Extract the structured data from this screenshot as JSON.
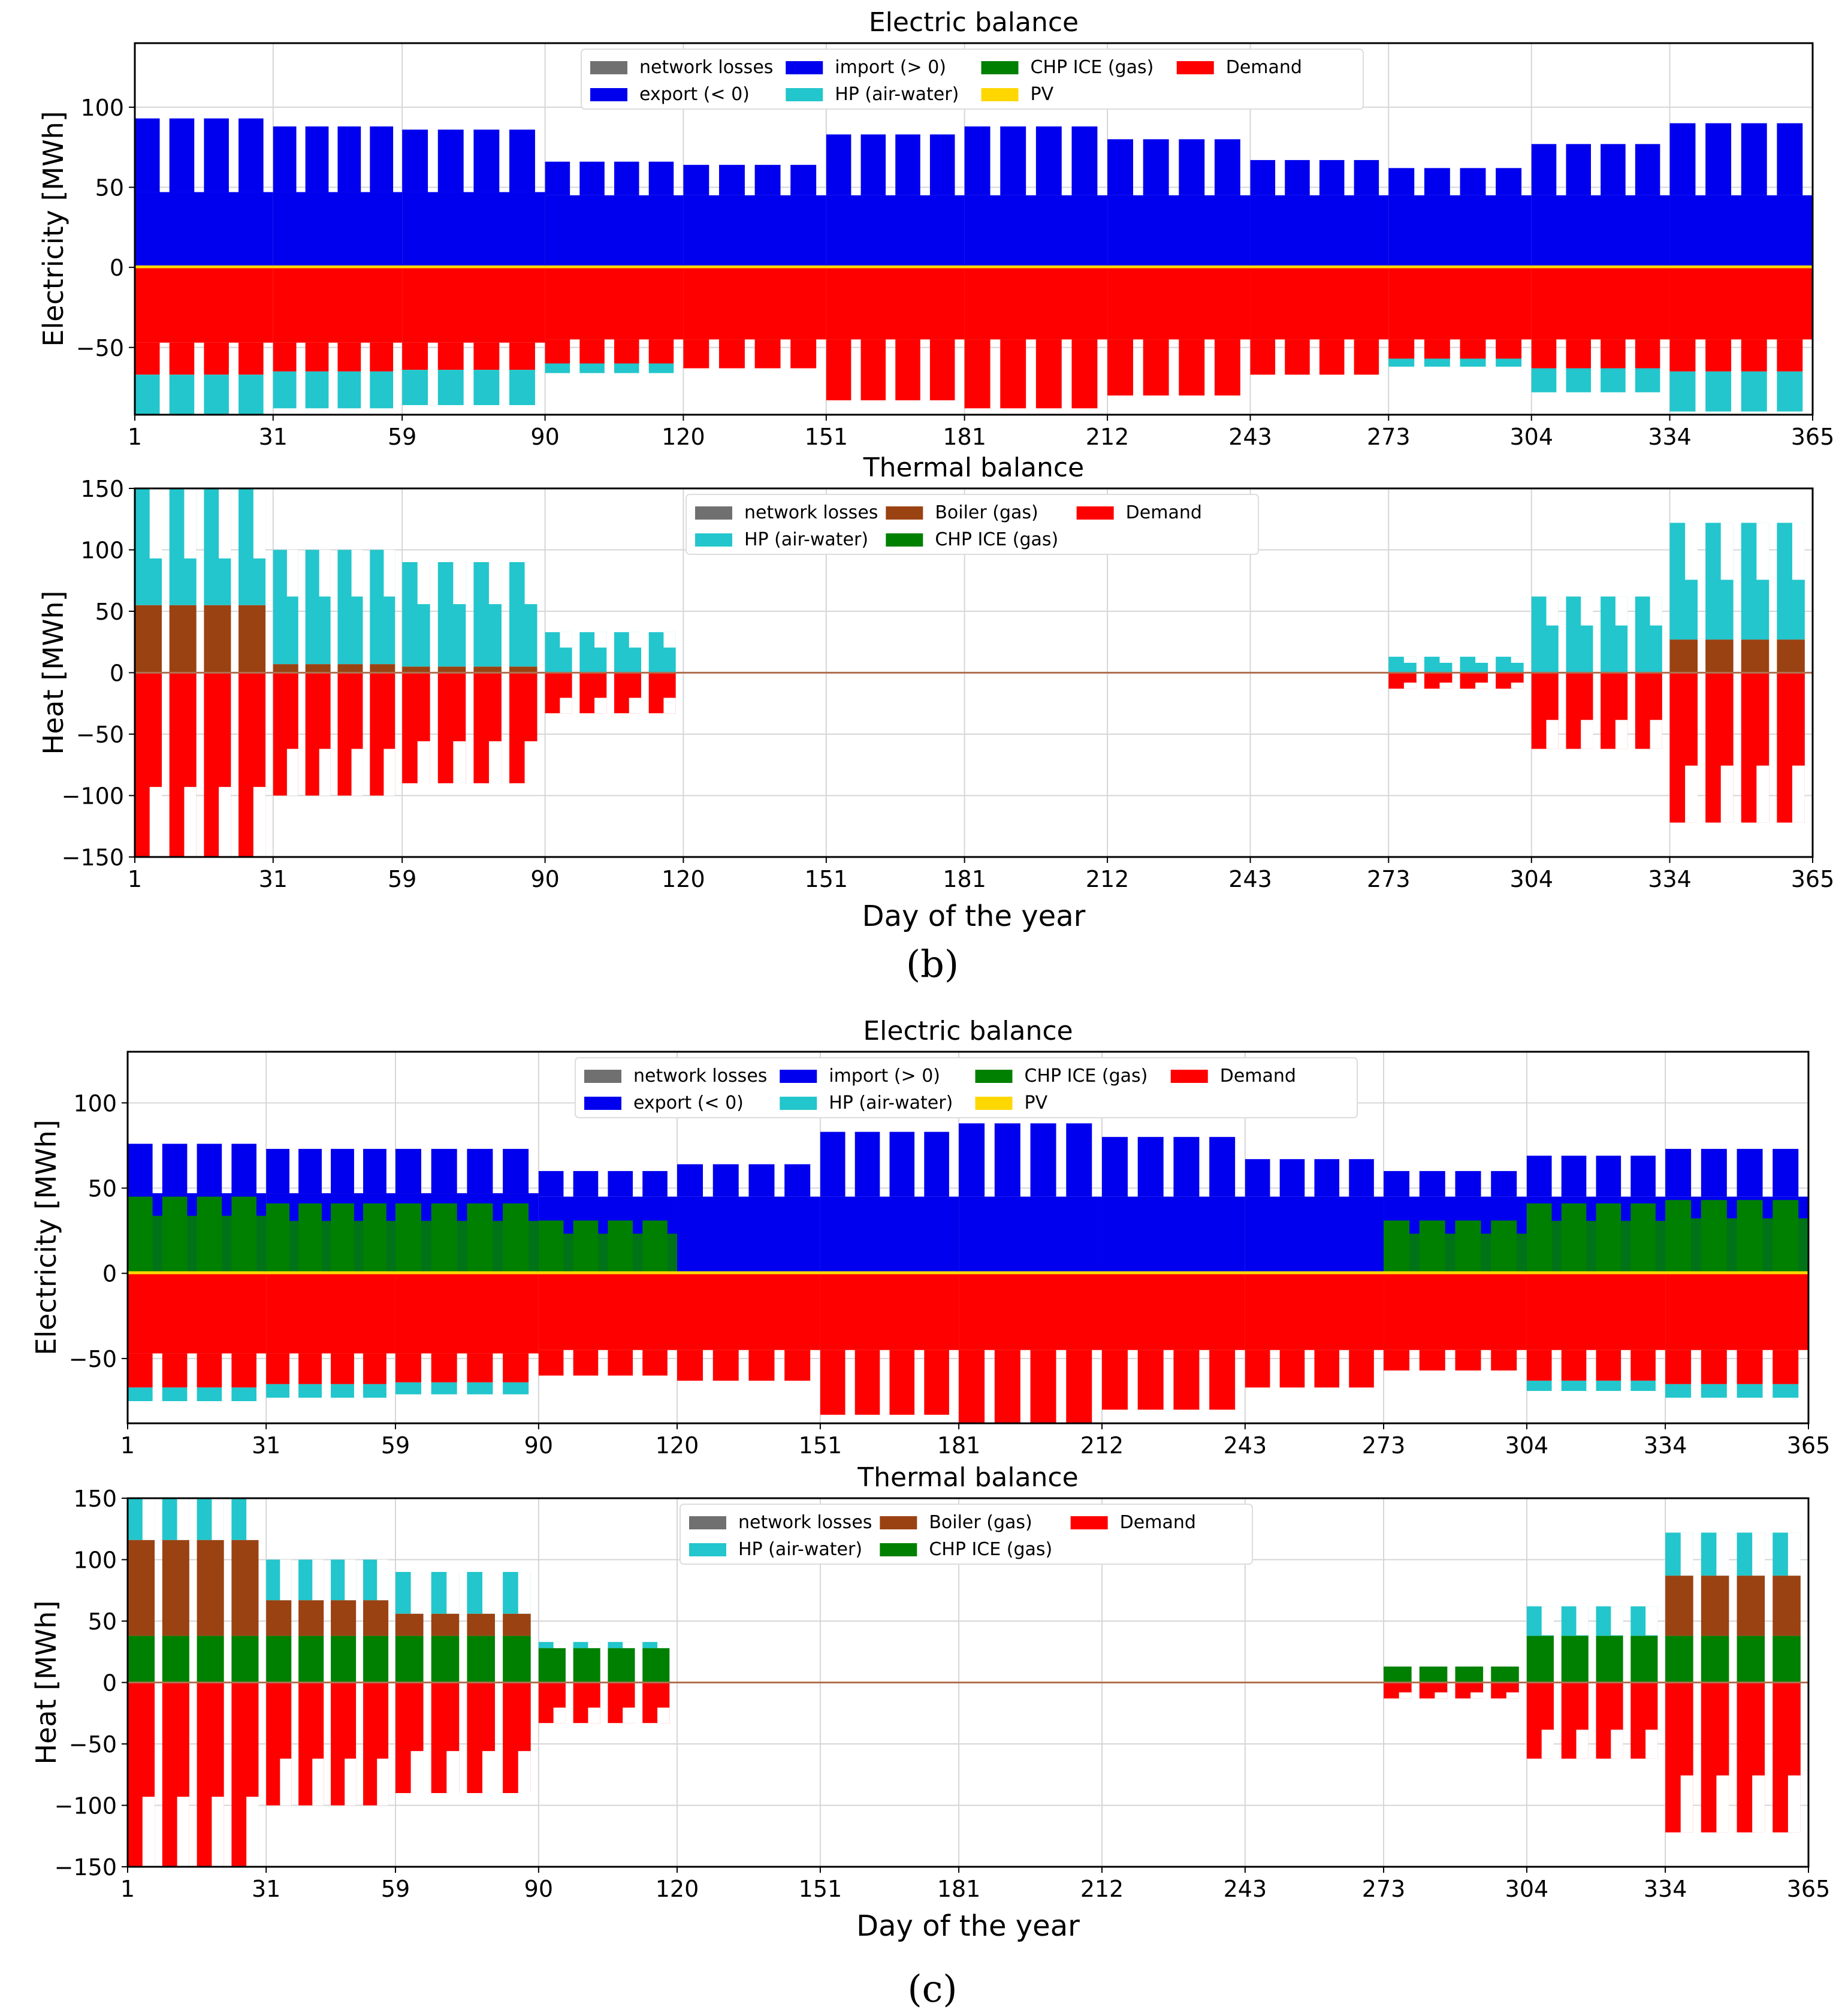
{
  "panels": [
    {
      "label": "(b)",
      "charts": [
        {
          "title": "Electric balance",
          "ylabel": "Electricity [MWh]",
          "xlabel": "",
          "ylim": [
            -92,
            140
          ],
          "yticks": [
            -50,
            0,
            50,
            100
          ],
          "xticks": [
            1,
            31,
            59,
            90,
            120,
            151,
            181,
            212,
            243,
            273,
            304,
            334,
            365
          ],
          "xlim": [
            1,
            365
          ],
          "legend": [
            {
              "name": "network losses",
              "color": "#707070"
            },
            {
              "name": "export (< 0)",
              "color": "#0000ee"
            },
            {
              "name": "import (> 0)",
              "color": "#0000ee"
            },
            {
              "name": "HP (air-water)",
              "color": "#22c6cc"
            },
            {
              "name": "CHP ICE (gas)",
              "color": "#008000"
            },
            {
              "name": "PV",
              "color": "#ffd700"
            },
            {
              "name": "Demand",
              "color": "#ff0000"
            }
          ],
          "chart_data": {
            "type": "bar",
            "months": [
              {
                "start": 1,
                "end": 31,
                "base_pos": 47,
                "peak_pos": 93,
                "chp": 0,
                "base_neg": -47,
                "peak_neg": -67,
                "hp": 25
              },
              {
                "start": 31,
                "end": 59,
                "base_pos": 47,
                "peak_pos": 88,
                "chp": 0,
                "base_neg": -47,
                "peak_neg": -65,
                "hp": 23
              },
              {
                "start": 59,
                "end": 90,
                "base_pos": 47,
                "peak_pos": 86,
                "chp": 0,
                "base_neg": -47,
                "peak_neg": -64,
                "hp": 22
              },
              {
                "start": 90,
                "end": 120,
                "base_pos": 45,
                "peak_pos": 66,
                "chp": 0,
                "base_neg": -45,
                "peak_neg": -60,
                "hp": 6
              },
              {
                "start": 120,
                "end": 151,
                "base_pos": 45,
                "peak_pos": 64,
                "chp": 0,
                "base_neg": -45,
                "peak_neg": -63,
                "hp": 0
              },
              {
                "start": 151,
                "end": 181,
                "base_pos": 45,
                "peak_pos": 83,
                "chp": 0,
                "base_neg": -45,
                "peak_neg": -83,
                "hp": 0
              },
              {
                "start": 181,
                "end": 212,
                "base_pos": 45,
                "peak_pos": 88,
                "chp": 0,
                "base_neg": -45,
                "peak_neg": -88,
                "hp": 0
              },
              {
                "start": 212,
                "end": 243,
                "base_pos": 45,
                "peak_pos": 80,
                "chp": 0,
                "base_neg": -45,
                "peak_neg": -80,
                "hp": 0
              },
              {
                "start": 243,
                "end": 273,
                "base_pos": 45,
                "peak_pos": 67,
                "chp": 0,
                "base_neg": -45,
                "peak_neg": -67,
                "hp": 0
              },
              {
                "start": 273,
                "end": 304,
                "base_pos": 45,
                "peak_pos": 62,
                "chp": 0,
                "base_neg": -45,
                "peak_neg": -57,
                "hp": 5
              },
              {
                "start": 304,
                "end": 334,
                "base_pos": 45,
                "peak_pos": 77,
                "chp": 0,
                "base_neg": -45,
                "peak_neg": -63,
                "hp": 15
              },
              {
                "start": 334,
                "end": 365,
                "base_pos": 45,
                "peak_pos": 90,
                "chp": 0,
                "base_neg": -45,
                "peak_neg": -65,
                "hp": 25
              }
            ]
          }
        },
        {
          "title": "Thermal balance",
          "ylabel": "Heat [MWh]",
          "xlabel": "Day of the year",
          "ylim": [
            -150,
            150
          ],
          "yticks": [
            -150,
            -100,
            -50,
            0,
            50,
            100,
            150
          ],
          "xticks": [
            1,
            31,
            59,
            90,
            120,
            151,
            181,
            212,
            243,
            273,
            304,
            334,
            365
          ],
          "xlim": [
            1,
            365
          ],
          "legend": [
            {
              "name": "network losses",
              "color": "#707070"
            },
            {
              "name": "HP (air-water)",
              "color": "#22c6cc"
            },
            {
              "name": "Boiler (gas)",
              "color": "#9b4212"
            },
            {
              "name": "CHP ICE (gas)",
              "color": "#008000"
            },
            {
              "name": "Demand",
              "color": "#ff0000"
            }
          ],
          "chart_data": {
            "type": "bar",
            "months": [
              {
                "start": 1,
                "end": 31,
                "chp": 0,
                "boiler": 55,
                "hp_top": 150,
                "demand": -150,
                "trough": 0.62
              },
              {
                "start": 31,
                "end": 59,
                "chp": 0,
                "boiler": 7,
                "hp_top": 100,
                "demand": -100,
                "trough": 0.62
              },
              {
                "start": 59,
                "end": 90,
                "chp": 0,
                "boiler": 5,
                "hp_top": 90,
                "demand": -90,
                "trough": 0.62
              },
              {
                "start": 90,
                "end": 120,
                "chp": 0,
                "boiler": 0,
                "hp_top": 33,
                "demand": -33,
                "trough": 0.62
              },
              {
                "start": 273,
                "end": 304,
                "chp": 0,
                "boiler": 0,
                "hp_top": 13,
                "demand": -13,
                "trough": 0.62
              },
              {
                "start": 304,
                "end": 334,
                "chp": 0,
                "boiler": 0,
                "hp_top": 62,
                "demand": -62,
                "trough": 0.62
              },
              {
                "start": 334,
                "end": 365,
                "chp": 0,
                "boiler": 27,
                "hp_top": 122,
                "demand": -122,
                "trough": 0.62
              }
            ]
          }
        }
      ]
    },
    {
      "label": "(c)",
      "charts": [
        {
          "title": "Electric balance",
          "ylabel": "Electricity [MWh]",
          "xlabel": "",
          "ylim": [
            -88,
            130
          ],
          "yticks": [
            -50,
            0,
            50,
            100
          ],
          "xticks": [
            1,
            31,
            59,
            90,
            120,
            151,
            181,
            212,
            243,
            273,
            304,
            334,
            365
          ],
          "xlim": [
            1,
            365
          ],
          "legend": [
            {
              "name": "network losses",
              "color": "#707070"
            },
            {
              "name": "export (< 0)",
              "color": "#0000ee"
            },
            {
              "name": "import (> 0)",
              "color": "#0000ee"
            },
            {
              "name": "HP (air-water)",
              "color": "#22c6cc"
            },
            {
              "name": "CHP ICE (gas)",
              "color": "#008000"
            },
            {
              "name": "PV",
              "color": "#ffd700"
            },
            {
              "name": "Demand",
              "color": "#ff0000"
            }
          ],
          "chart_data": {
            "type": "bar",
            "months": [
              {
                "start": 1,
                "end": 31,
                "base_pos": 47,
                "peak_pos": 76,
                "chp": 45,
                "base_neg": -47,
                "peak_neg": -67,
                "hp": 8
              },
              {
                "start": 31,
                "end": 59,
                "base_pos": 47,
                "peak_pos": 73,
                "chp": 41,
                "base_neg": -47,
                "peak_neg": -65,
                "hp": 8
              },
              {
                "start": 59,
                "end": 90,
                "base_pos": 47,
                "peak_pos": 73,
                "chp": 41,
                "base_neg": -47,
                "peak_neg": -64,
                "hp": 7
              },
              {
                "start": 90,
                "end": 120,
                "base_pos": 45,
                "peak_pos": 60,
                "chp": 31,
                "base_neg": -45,
                "peak_neg": -60,
                "hp": 0
              },
              {
                "start": 120,
                "end": 151,
                "base_pos": 45,
                "peak_pos": 64,
                "chp": 0,
                "base_neg": -45,
                "peak_neg": -63,
                "hp": 0
              },
              {
                "start": 151,
                "end": 181,
                "base_pos": 45,
                "peak_pos": 83,
                "chp": 0,
                "base_neg": -45,
                "peak_neg": -83,
                "hp": 0
              },
              {
                "start": 181,
                "end": 212,
                "base_pos": 45,
                "peak_pos": 88,
                "chp": 0,
                "base_neg": -45,
                "peak_neg": -88,
                "hp": 0
              },
              {
                "start": 212,
                "end": 243,
                "base_pos": 45,
                "peak_pos": 80,
                "chp": 0,
                "base_neg": -45,
                "peak_neg": -80,
                "hp": 0
              },
              {
                "start": 243,
                "end": 273,
                "base_pos": 45,
                "peak_pos": 67,
                "chp": 0,
                "base_neg": -45,
                "peak_neg": -67,
                "hp": 0
              },
              {
                "start": 273,
                "end": 304,
                "base_pos": 45,
                "peak_pos": 60,
                "chp": 31,
                "base_neg": -45,
                "peak_neg": -57,
                "hp": 0
              },
              {
                "start": 304,
                "end": 334,
                "base_pos": 45,
                "peak_pos": 69,
                "chp": 41,
                "base_neg": -45,
                "peak_neg": -63,
                "hp": 6
              },
              {
                "start": 334,
                "end": 365,
                "base_pos": 45,
                "peak_pos": 73,
                "chp": 43,
                "base_neg": -45,
                "peak_neg": -65,
                "hp": 8
              }
            ]
          }
        },
        {
          "title": "Thermal balance",
          "ylabel": "Heat [MWh]",
          "xlabel": "Day of the year",
          "ylim": [
            -150,
            150
          ],
          "yticks": [
            -150,
            -100,
            -50,
            0,
            50,
            100,
            150
          ],
          "xticks": [
            1,
            31,
            59,
            90,
            120,
            151,
            181,
            212,
            243,
            273,
            304,
            334,
            365
          ],
          "xlim": [
            1,
            365
          ],
          "legend": [
            {
              "name": "network losses",
              "color": "#707070"
            },
            {
              "name": "HP (air-water)",
              "color": "#22c6cc"
            },
            {
              "name": "Boiler (gas)",
              "color": "#9b4212"
            },
            {
              "name": "CHP ICE (gas)",
              "color": "#008000"
            },
            {
              "name": "Demand",
              "color": "#ff0000"
            }
          ],
          "chart_data": {
            "type": "bar",
            "months": [
              {
                "start": 1,
                "end": 31,
                "chp": 38,
                "boiler": 116,
                "hp_top": 150,
                "demand": -150,
                "trough": 0.62
              },
              {
                "start": 31,
                "end": 59,
                "chp": 38,
                "boiler": 67,
                "hp_top": 100,
                "demand": -100,
                "trough": 0.62
              },
              {
                "start": 59,
                "end": 90,
                "chp": 38,
                "boiler": 56,
                "hp_top": 90,
                "demand": -90,
                "trough": 0.62
              },
              {
                "start": 90,
                "end": 120,
                "chp": 28,
                "boiler": 28,
                "hp_top": 33,
                "demand": -33,
                "trough": 0.62
              },
              {
                "start": 273,
                "end": 304,
                "chp": 13,
                "boiler": 13,
                "hp_top": 13,
                "demand": -13,
                "trough": 0.62
              },
              {
                "start": 304,
                "end": 334,
                "chp": 38,
                "boiler": 38,
                "hp_top": 62,
                "demand": -62,
                "trough": 0.62
              },
              {
                "start": 334,
                "end": 365,
                "chp": 38,
                "boiler": 87,
                "hp_top": 122,
                "demand": -122,
                "trough": 0.62
              }
            ]
          }
        }
      ]
    }
  ]
}
